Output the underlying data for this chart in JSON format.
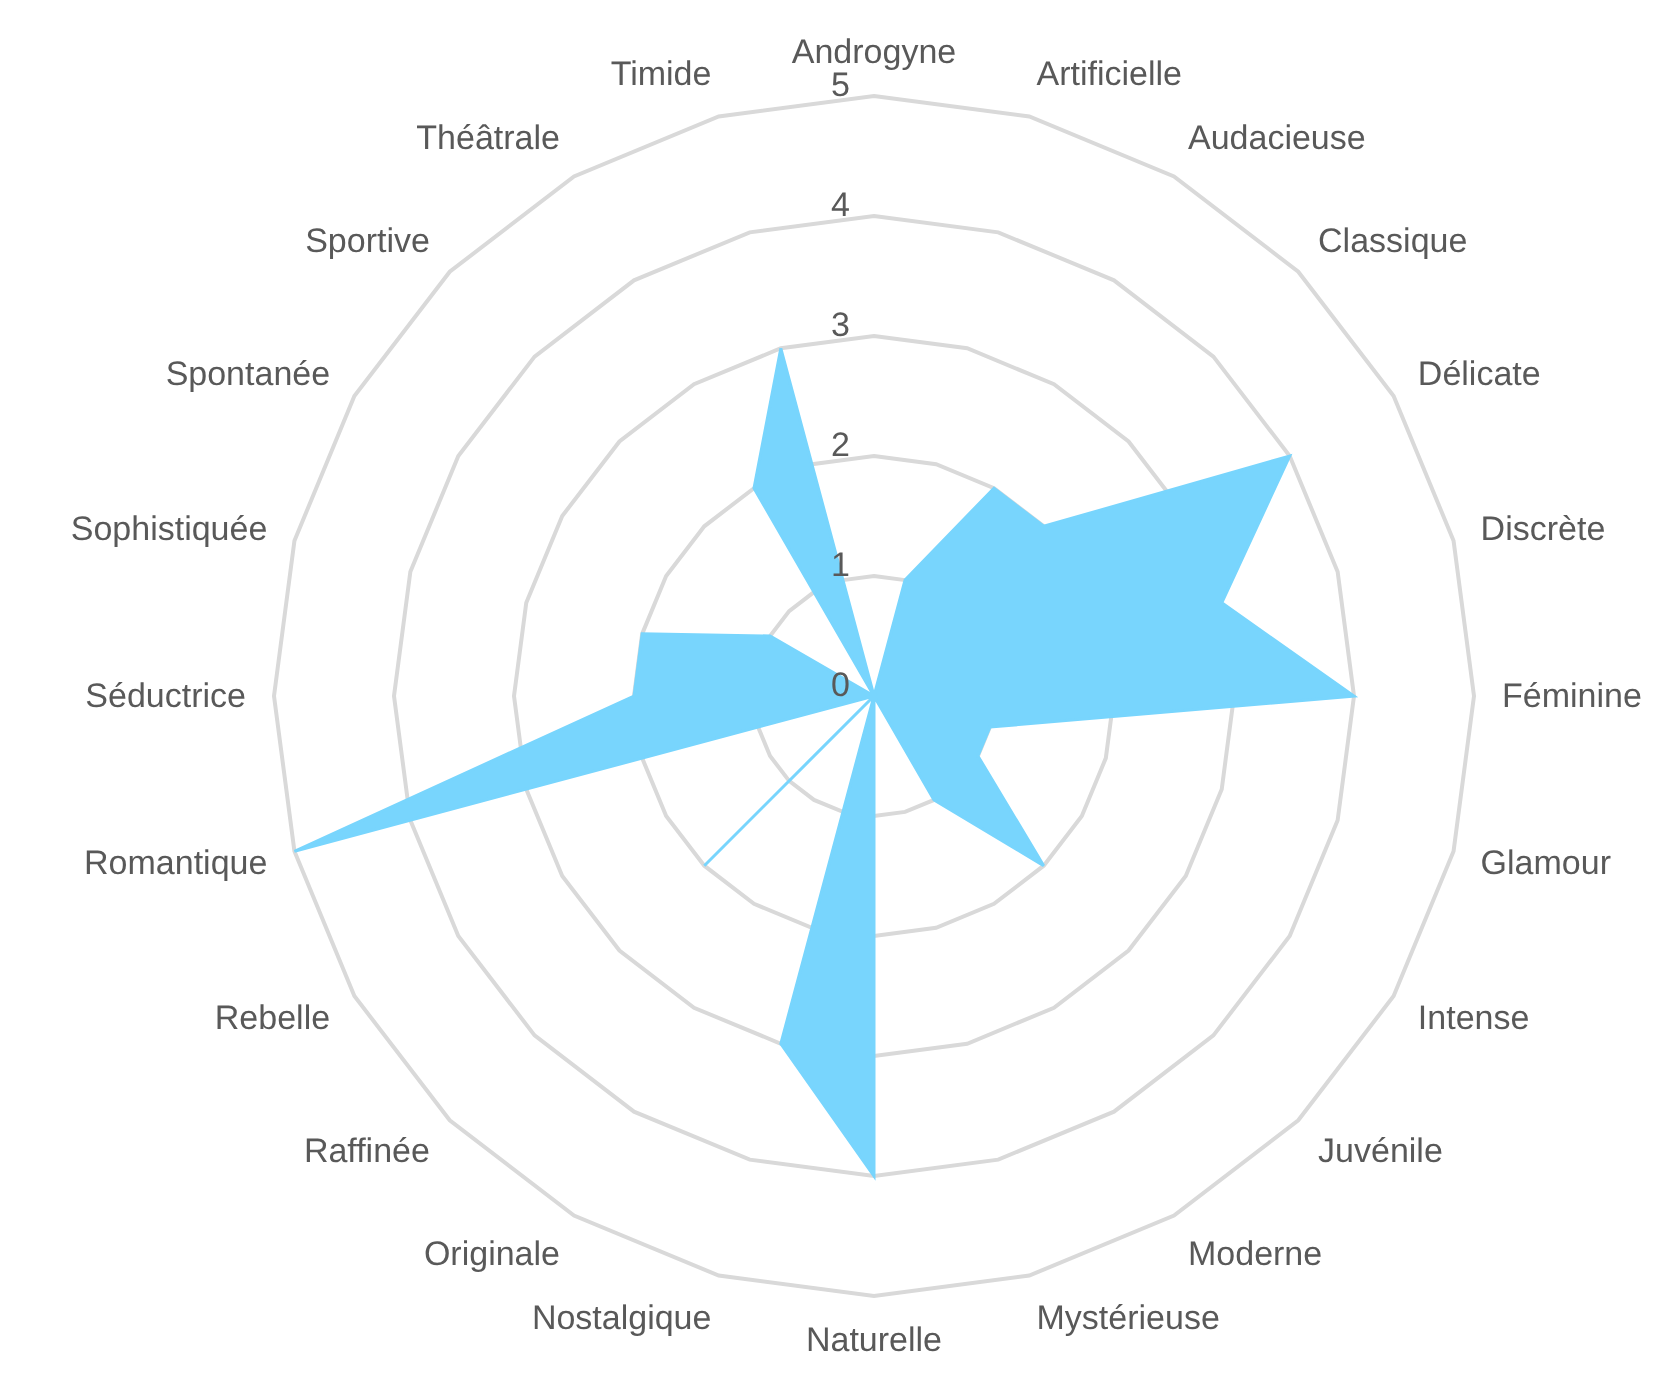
{
  "chart_data": {
    "type": "radar",
    "categories": [
      "Androgyne",
      "Artificielle",
      "Audacieuse",
      "Classique",
      "Délicate",
      "Discrète",
      "Féminine",
      "Glamour",
      "Intense",
      "Juvénile",
      "Moderne",
      "Mystérieuse",
      "Naturelle",
      "Nostalgique",
      "Originale",
      "Raffinée",
      "Rebelle",
      "Romantique",
      "Séductrice",
      "Sophistiquée",
      "Spontanée",
      "Sportive",
      "Théâtrale",
      "Timide"
    ],
    "series": [
      {
        "color": "#78d5fd",
        "values": [
          0,
          1,
          2,
          2,
          4,
          3,
          4,
          1,
          1,
          2,
          1,
          0,
          4,
          3,
          0,
          2,
          0,
          5,
          2,
          2,
          1,
          0,
          2,
          3
        ]
      }
    ],
    "ylim": [
      0,
      5
    ],
    "yticks": [
      0,
      1,
      2,
      3,
      4,
      5
    ],
    "grid": true,
    "legend": false
  }
}
